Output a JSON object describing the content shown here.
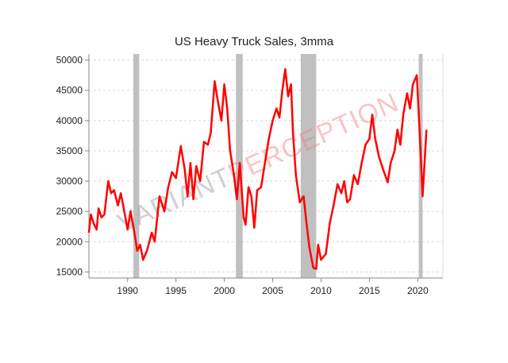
{
  "chart_data": {
    "type": "line",
    "title": "US Heavy Truck Sales, 3mma",
    "watermark": [
      "VARIANT",
      "PERCEPTION"
    ],
    "xlim": [
      1986,
      2022.6
    ],
    "xticks": [
      1990,
      1995,
      2000,
      2005,
      2010,
      2015,
      2020
    ],
    "ylim": [
      14000,
      51000
    ],
    "yticks": [
      15000,
      20000,
      25000,
      30000,
      35000,
      40000,
      45000,
      50000
    ],
    "grid": true,
    "recession_color": "#c0c0c0",
    "recessions": [
      [
        1990.6,
        1991.2
      ],
      [
        2001.2,
        2001.9
      ],
      [
        2007.9,
        2009.5
      ],
      [
        2020.1,
        2020.5
      ]
    ],
    "x": [
      1986.0,
      1986.2,
      1986.5,
      1986.8,
      1987.0,
      1987.3,
      1987.6,
      1988.0,
      1988.3,
      1988.6,
      1989.0,
      1989.3,
      1989.6,
      1990.0,
      1990.3,
      1990.6,
      1991.0,
      1991.3,
      1991.6,
      1992.0,
      1992.5,
      1992.8,
      1993.0,
      1993.3,
      1993.8,
      1994.2,
      1994.6,
      1995.0,
      1995.5,
      1995.9,
      1996.2,
      1996.5,
      1996.8,
      1997.1,
      1997.5,
      1997.9,
      1998.3,
      1998.6,
      1999.0,
      1999.3,
      1999.7,
      2000.0,
      2000.3,
      2000.6,
      2001.0,
      2001.3,
      2001.6,
      2002.0,
      2002.2,
      2002.5,
      2002.8,
      2003.1,
      2003.4,
      2003.8,
      2004.2,
      2004.6,
      2005.0,
      2005.4,
      2005.7,
      2006.0,
      2006.3,
      2006.6,
      2006.9,
      2007.1,
      2007.4,
      2007.8,
      2008.2,
      2008.5,
      2008.8,
      2009.2,
      2009.5,
      2009.7,
      2010.0,
      2010.5,
      2010.9,
      2011.3,
      2011.7,
      2012.1,
      2012.4,
      2012.7,
      2013.0,
      2013.4,
      2013.8,
      2014.2,
      2014.6,
      2015.0,
      2015.3,
      2015.6,
      2016.0,
      2016.4,
      2016.9,
      2017.2,
      2017.6,
      2017.9,
      2018.2,
      2018.5,
      2018.9,
      2019.2,
      2019.5,
      2019.9,
      2020.2,
      2020.4,
      2020.5,
      2020.7,
      2020.9
    ],
    "series": [
      {
        "name": "US Heavy Truck Sales",
        "color": "#ff0000",
        "values": [
          21500,
          24500,
          23000,
          22000,
          25500,
          24000,
          24500,
          30000,
          28000,
          28500,
          26000,
          28000,
          25500,
          22000,
          25000,
          22500,
          18500,
          19500,
          17000,
          18500,
          21500,
          20000,
          23000,
          27500,
          25000,
          29000,
          31500,
          30500,
          35800,
          32000,
          27500,
          33000,
          27000,
          32500,
          30000,
          36500,
          36000,
          38000,
          46500,
          43500,
          40000,
          46000,
          42000,
          35000,
          31000,
          27000,
          33000,
          24000,
          22800,
          29000,
          27500,
          22300,
          28500,
          29000,
          33000,
          37000,
          40000,
          42000,
          40500,
          45000,
          48500,
          44000,
          46000,
          38000,
          31000,
          26500,
          27500,
          23000,
          19000,
          15700,
          15500,
          19500,
          17000,
          18000,
          23000,
          26000,
          29500,
          28000,
          30000,
          26500,
          27000,
          31000,
          29500,
          33000,
          36000,
          37000,
          41000,
          37000,
          34000,
          32000,
          29800,
          33000,
          35000,
          38500,
          36000,
          41000,
          44500,
          42000,
          46000,
          47500,
          38000,
          31000,
          27500,
          33000,
          38500
        ]
      }
    ]
  }
}
